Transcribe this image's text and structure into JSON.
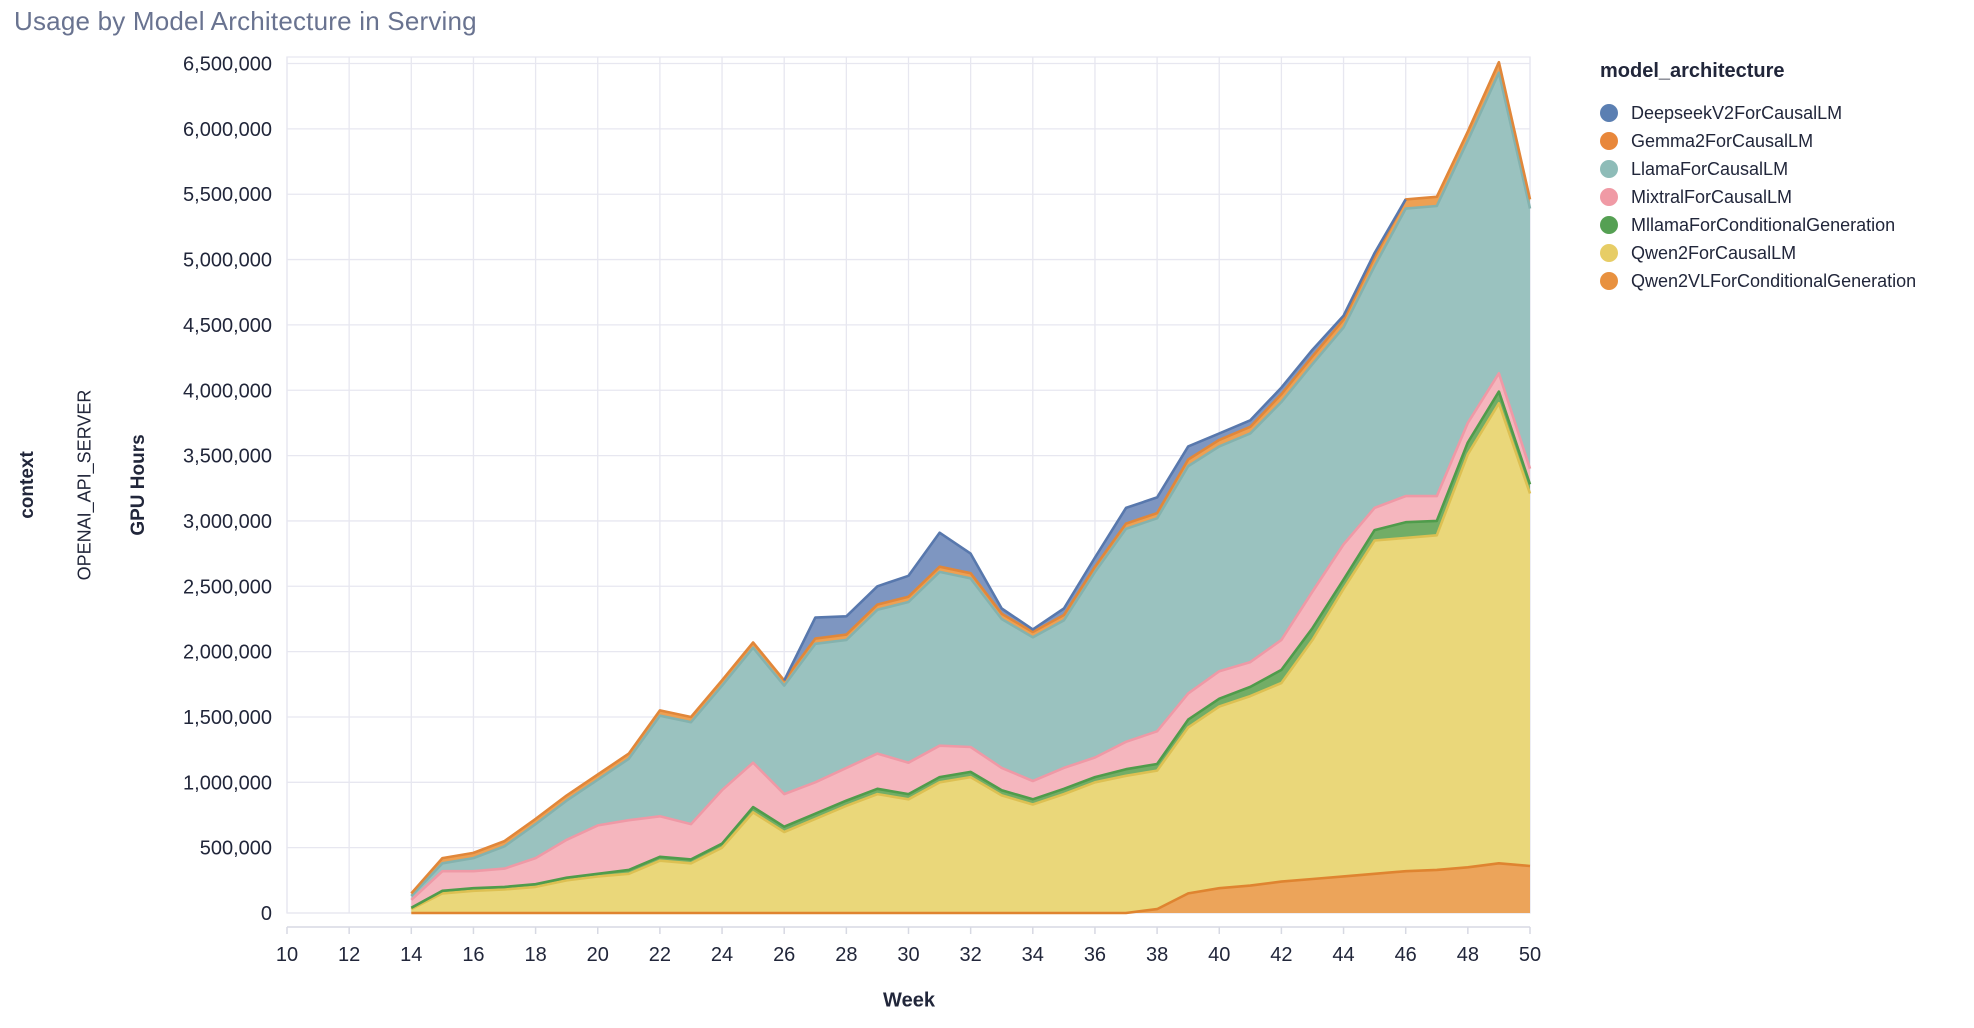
{
  "title": "Usage by Model Architecture in Serving",
  "facet": {
    "row_field_label": "context",
    "row_value_label": "OPENAI_API_SERVER"
  },
  "axes": {
    "x": {
      "title": "Week",
      "ticks": [
        10,
        12,
        14,
        16,
        18,
        20,
        22,
        24,
        26,
        28,
        30,
        32,
        34,
        36,
        38,
        40,
        42,
        44,
        46,
        48,
        50
      ],
      "min": 10,
      "max": 50
    },
    "y": {
      "title": "GPU Hours",
      "ticks": [
        0,
        500000,
        1000000,
        1500000,
        2000000,
        2500000,
        3000000,
        3500000,
        4000000,
        4500000,
        5000000,
        5500000,
        6000000,
        6500000
      ],
      "min": 0,
      "max": 6550000
    }
  },
  "legend": {
    "title": "model_architecture",
    "entries": [
      {
        "label": "DeepseekV2ForCausalLM",
        "color": "#5b7fb2"
      },
      {
        "label": "Gemma2ForCausalLM",
        "color": "#e8873b"
      },
      {
        "label": "LlamaForCausalLM",
        "color": "#8ebcb8"
      },
      {
        "label": "MixtralForCausalLM",
        "color": "#f09aa5"
      },
      {
        "label": "MllamaForConditionalGeneration",
        "color": "#55a053"
      },
      {
        "label": "Qwen2ForCausalLM",
        "color": "#e7cd66"
      },
      {
        "label": "Qwen2VLForConditionalGeneration",
        "color": "#e8913f"
      }
    ]
  },
  "style": {
    "title_color": "#697390",
    "text_color": "#21263a",
    "grid_color": "#e7e7f0",
    "axis_domain_color": "#d7d9e3",
    "background": "#ffffff"
  },
  "chart_data": {
    "type": "area",
    "stacked": true,
    "title": "Usage by Model Architecture in Serving",
    "xlabel": "Week",
    "ylabel": "GPU Hours",
    "xlim": [
      10,
      50
    ],
    "ylim": [
      0,
      6550000
    ],
    "grid": true,
    "legend_position": "right",
    "stack_order": "bottom-to-top",
    "x": [
      14,
      15,
      16,
      17,
      18,
      19,
      20,
      21,
      22,
      23,
      24,
      25,
      26,
      27,
      28,
      29,
      30,
      31,
      32,
      33,
      34,
      35,
      36,
      37,
      38,
      39,
      40,
      41,
      42,
      43,
      44,
      45,
      46,
      47,
      48,
      49,
      50
    ],
    "series": [
      {
        "name": "Qwen2VLForConditionalGeneration",
        "fill": "#eca45a",
        "stroke": "#df8430",
        "values": [
          0,
          0,
          0,
          0,
          0,
          0,
          0,
          0,
          0,
          0,
          0,
          0,
          0,
          0,
          0,
          0,
          0,
          0,
          0,
          0,
          0,
          0,
          0,
          0,
          30000,
          150000,
          190000,
          210000,
          240000,
          260000,
          280000,
          300000,
          320000,
          330000,
          350000,
          380000,
          360000
        ]
      },
      {
        "name": "Qwen2ForCausalLM",
        "fill": "#ead77a",
        "stroke": "#ddc052",
        "values": [
          30000,
          150000,
          170000,
          180000,
          200000,
          250000,
          280000,
          300000,
          400000,
          380000,
          500000,
          770000,
          620000,
          720000,
          820000,
          910000,
          870000,
          1000000,
          1040000,
          900000,
          830000,
          910000,
          1000000,
          1050000,
          1060000,
          1270000,
          1390000,
          1450000,
          1520000,
          1830000,
          2200000,
          2550000,
          2550000,
          2560000,
          3160000,
          3520000,
          2850000
        ]
      },
      {
        "name": "MllamaForConditionalGeneration",
        "fill": "#72ad66",
        "stroke": "#4f9c4b",
        "values": [
          10000,
          20000,
          20000,
          20000,
          20000,
          20000,
          20000,
          30000,
          30000,
          30000,
          30000,
          40000,
          40000,
          40000,
          40000,
          40000,
          40000,
          40000,
          40000,
          40000,
          40000,
          40000,
          40000,
          50000,
          50000,
          60000,
          60000,
          70000,
          100000,
          90000,
          70000,
          80000,
          120000,
          110000,
          90000,
          90000,
          70000
        ]
      },
      {
        "name": "MixtralForCausalLM",
        "fill": "#f5b6be",
        "stroke": "#ef99a6",
        "values": [
          60000,
          150000,
          130000,
          140000,
          200000,
          290000,
          370000,
          380000,
          310000,
          270000,
          410000,
          340000,
          250000,
          240000,
          250000,
          270000,
          240000,
          240000,
          190000,
          170000,
          140000,
          160000,
          150000,
          210000,
          250000,
          200000,
          210000,
          190000,
          230000,
          280000,
          270000,
          170000,
          200000,
          190000,
          150000,
          140000,
          120000
        ]
      },
      {
        "name": "LlamaForCausalLM",
        "fill": "#9ac2bf",
        "stroke": "#84b2ae",
        "values": [
          30000,
          60000,
          100000,
          170000,
          260000,
          300000,
          350000,
          470000,
          770000,
          780000,
          800000,
          880000,
          830000,
          1060000,
          980000,
          1100000,
          1230000,
          1330000,
          1290000,
          1140000,
          1100000,
          1130000,
          1420000,
          1630000,
          1630000,
          1740000,
          1720000,
          1750000,
          1820000,
          1740000,
          1660000,
          1850000,
          2200000,
          2220000,
          2160000,
          2300000,
          1990000
        ]
      },
      {
        "name": "Gemma2ForCausalLM",
        "fill": "#eda053",
        "stroke": "#e1873a",
        "values": [
          20000,
          40000,
          40000,
          40000,
          40000,
          40000,
          40000,
          40000,
          40000,
          40000,
          40000,
          40000,
          40000,
          40000,
          40000,
          40000,
          40000,
          40000,
          40000,
          40000,
          40000,
          40000,
          40000,
          40000,
          40000,
          50000,
          50000,
          50000,
          60000,
          60000,
          60000,
          70000,
          70000,
          70000,
          70000,
          80000,
          70000
        ]
      },
      {
        "name": "DeepseekV2ForCausalLM",
        "fill": "#7e96c1",
        "stroke": "#5878ad",
        "values": [
          null,
          null,
          null,
          null,
          null,
          null,
          null,
          null,
          null,
          null,
          null,
          null,
          0,
          160000,
          140000,
          140000,
          160000,
          260000,
          150000,
          40000,
          20000,
          50000,
          70000,
          120000,
          120000,
          100000,
          50000,
          50000,
          50000,
          50000,
          30000,
          30000,
          0,
          null,
          null,
          null,
          null
        ]
      }
    ]
  }
}
